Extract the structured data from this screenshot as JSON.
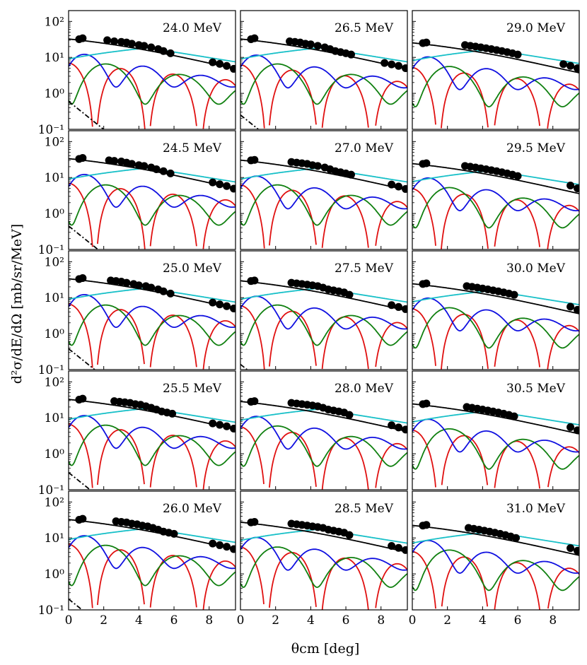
{
  "figure": {
    "ylabel": "d²σ/dE/dΩ [mb/sr/MeV]",
    "xlabel": "θcm [deg]"
  },
  "chart_data": {
    "type": "line",
    "layout": "5 rows x 3 columns grid of panels, read row-wise",
    "xlim": [
      0,
      9.5
    ],
    "ylim": [
      0.1,
      200
    ],
    "yscale": "log",
    "xticks": [
      "0",
      "2",
      "4",
      "6",
      "8"
    ],
    "yticks": [
      "10⁻¹",
      "10⁰",
      "10¹",
      "10²"
    ],
    "xlabel": "θcm [deg]",
    "ylabel": "d²σ/dE/dΩ [mb/sr/MeV]",
    "colors": {
      "data": "#000000",
      "total": "#000000",
      "red": "#e01010",
      "blue": "#1010e0",
      "green": "#108010",
      "cyan": "#18c0c8",
      "dashdot": "#000000"
    },
    "legend": "none",
    "panels": [
      {
        "label": "24.0 MeV",
        "data_x": [
          0.6,
          0.8,
          2.2,
          2.6,
          3.0,
          3.3,
          3.6,
          4.0,
          4.3,
          4.7,
          5.1,
          5.4,
          5.8,
          8.2,
          8.6,
          9.0,
          9.4
        ],
        "data_y": [
          32,
          34,
          30,
          28,
          27,
          26,
          24,
          22,
          21,
          19,
          17,
          15,
          13,
          7.3,
          6.6,
          5.8,
          4.8
        ],
        "red_scale": 1.0,
        "blue_scale": 1.0,
        "green_scale": 1.0,
        "cyan_scale": 1.0,
        "dashdot": 0.6
      },
      {
        "label": "26.5 MeV",
        "data_x": [
          0.6,
          0.8,
          2.8,
          3.1,
          3.4,
          3.7,
          4.0,
          4.4,
          4.8,
          5.1,
          5.4,
          5.7,
          6.0,
          6.3,
          8.2,
          8.6,
          9.0,
          9.4
        ],
        "data_y": [
          32,
          34,
          28,
          27,
          26,
          24,
          23,
          21,
          19,
          17,
          15,
          14,
          13,
          12,
          7.0,
          6.4,
          5.8,
          5.0
        ],
        "red_scale": 0.9,
        "blue_scale": 0.95,
        "green_scale": 1.0,
        "cyan_scale": 1.0,
        "dashdot": 0.25
      },
      {
        "label": "29.0 MeV",
        "data_x": [
          0.6,
          0.8,
          3.0,
          3.3,
          3.6,
          3.9,
          4.2,
          4.5,
          4.8,
          5.1,
          5.4,
          5.7,
          6.0,
          8.6,
          9.0,
          9.4
        ],
        "data_y": [
          25,
          26,
          22,
          21,
          20,
          19,
          18,
          17,
          16,
          15,
          14,
          13,
          12,
          6.5,
          5.8,
          5.0
        ],
        "red_scale": 0.75,
        "blue_scale": 0.85,
        "green_scale": 0.85,
        "cyan_scale": 0.9,
        "dashdot": 0
      },
      {
        "label": "24.5 MeV",
        "data_x": [
          0.6,
          0.8,
          2.3,
          2.6,
          3.0,
          3.3,
          3.6,
          4.0,
          4.3,
          4.7,
          5.0,
          5.4,
          5.8,
          8.2,
          8.6,
          9.0,
          9.4
        ],
        "data_y": [
          33,
          35,
          30,
          29,
          28,
          26,
          24,
          22,
          21,
          19,
          17,
          15,
          13,
          7.3,
          6.5,
          5.8,
          4.9
        ],
        "red_scale": 1.0,
        "blue_scale": 1.0,
        "green_scale": 0.95,
        "cyan_scale": 1.0,
        "dashdot": 0.45
      },
      {
        "label": "27.0 MeV",
        "data_x": [
          0.6,
          0.8,
          2.9,
          3.2,
          3.5,
          3.8,
          4.1,
          4.4,
          4.8,
          5.1,
          5.4,
          5.7,
          6.0,
          6.3,
          8.6,
          9.0,
          9.4
        ],
        "data_y": [
          30,
          31,
          27,
          26,
          25,
          24,
          22,
          21,
          19,
          17,
          15,
          14,
          13,
          12,
          6.4,
          5.6,
          4.8
        ],
        "red_scale": 0.9,
        "blue_scale": 0.9,
        "green_scale": 0.95,
        "cyan_scale": 1.0,
        "dashdot": 0
      },
      {
        "label": "29.5 MeV",
        "data_x": [
          0.6,
          0.8,
          3.0,
          3.3,
          3.6,
          3.9,
          4.2,
          4.5,
          4.8,
          5.1,
          5.4,
          5.7,
          6.0,
          9.0,
          9.4
        ],
        "data_y": [
          24,
          25,
          21,
          20,
          19,
          18,
          17,
          16,
          15,
          14,
          13,
          12,
          11,
          6.0,
          5.0
        ],
        "red_scale": 0.7,
        "blue_scale": 0.8,
        "green_scale": 0.8,
        "cyan_scale": 0.85,
        "dashdot": 0
      },
      {
        "label": "25.0 MeV",
        "data_x": [
          0.6,
          0.8,
          2.4,
          2.7,
          3.0,
          3.3,
          3.7,
          4.0,
          4.4,
          4.7,
          5.1,
          5.4,
          5.8,
          8.2,
          8.6,
          9.0,
          9.4
        ],
        "data_y": [
          33,
          35,
          30,
          29,
          28,
          26,
          24,
          22,
          21,
          19,
          17,
          15,
          13,
          7.3,
          6.5,
          5.8,
          5.0
        ],
        "red_scale": 0.95,
        "blue_scale": 1.0,
        "green_scale": 0.95,
        "cyan_scale": 1.0,
        "dashdot": 0.38
      },
      {
        "label": "27.5 MeV",
        "data_x": [
          0.6,
          0.8,
          2.9,
          3.2,
          3.5,
          3.8,
          4.1,
          4.4,
          4.7,
          5.0,
          5.3,
          5.6,
          5.9,
          6.2,
          8.6,
          9.0,
          9.4
        ],
        "data_y": [
          29,
          30,
          26,
          25,
          24,
          23,
          22,
          21,
          19,
          17,
          16,
          15,
          14,
          12,
          6.2,
          5.5,
          4.8
        ],
        "red_scale": 0.85,
        "blue_scale": 0.9,
        "green_scale": 0.95,
        "cyan_scale": 1.0,
        "dashdot": 0.14
      },
      {
        "label": "30.0 MeV",
        "data_x": [
          0.6,
          0.8,
          3.1,
          3.4,
          3.7,
          4.0,
          4.3,
          4.6,
          4.9,
          5.2,
          5.5,
          5.8,
          9.0,
          9.4
        ],
        "data_y": [
          24,
          25,
          21,
          20,
          19,
          18,
          17,
          16,
          15,
          14,
          13,
          12,
          5.6,
          4.6
        ],
        "red_scale": 0.7,
        "blue_scale": 0.8,
        "green_scale": 0.8,
        "cyan_scale": 0.85,
        "dashdot": 0
      },
      {
        "label": "25.5 MeV",
        "data_x": [
          0.6,
          0.8,
          2.6,
          2.9,
          3.2,
          3.5,
          3.8,
          4.1,
          4.4,
          4.7,
          5.0,
          5.3,
          5.6,
          5.9,
          8.2,
          8.6,
          9.0,
          9.4
        ],
        "data_y": [
          32,
          34,
          29,
          28,
          27,
          26,
          24,
          23,
          21,
          19,
          17,
          15,
          14,
          13,
          7.0,
          6.4,
          5.8,
          5.0
        ],
        "red_scale": 0.95,
        "blue_scale": 0.95,
        "green_scale": 0.95,
        "cyan_scale": 1.0,
        "dashdot": 0.3
      },
      {
        "label": "28.0 MeV",
        "data_x": [
          0.6,
          0.8,
          2.9,
          3.2,
          3.5,
          3.8,
          4.1,
          4.4,
          4.7,
          5.0,
          5.3,
          5.6,
          5.9,
          6.2,
          8.6,
          9.0,
          9.4
        ],
        "data_y": [
          28,
          29,
          26,
          25,
          24,
          23,
          22,
          21,
          19,
          17,
          16,
          15,
          14,
          12,
          6.2,
          5.4,
          4.7
        ],
        "red_scale": 0.8,
        "blue_scale": 0.9,
        "green_scale": 0.9,
        "cyan_scale": 0.95,
        "dashdot": 0
      },
      {
        "label": "30.5 MeV",
        "data_x": [
          0.6,
          0.8,
          3.1,
          3.4,
          3.7,
          4.0,
          4.3,
          4.6,
          4.9,
          5.2,
          5.5,
          5.8,
          9.0,
          9.4
        ],
        "data_y": [
          24,
          25,
          20,
          19,
          18,
          17,
          16,
          15,
          14,
          13,
          12,
          11,
          5.5,
          4.5
        ],
        "red_scale": 0.65,
        "blue_scale": 0.75,
        "green_scale": 0.75,
        "cyan_scale": 0.85,
        "dashdot": 0
      },
      {
        "label": "26.0 MeV",
        "data_x": [
          0.6,
          0.8,
          2.7,
          3.0,
          3.3,
          3.6,
          3.9,
          4.2,
          4.5,
          4.8,
          5.1,
          5.4,
          5.7,
          6.0,
          8.2,
          8.6,
          9.0,
          9.4
        ],
        "data_y": [
          32,
          34,
          29,
          28,
          27,
          25,
          24,
          22,
          21,
          19,
          17,
          15,
          14,
          13,
          7.0,
          6.3,
          5.7,
          4.9
        ],
        "red_scale": 0.95,
        "blue_scale": 0.95,
        "green_scale": 0.95,
        "cyan_scale": 1.0,
        "dashdot": 0.2
      },
      {
        "label": "28.5 MeV",
        "data_x": [
          0.6,
          0.8,
          2.9,
          3.2,
          3.5,
          3.8,
          4.1,
          4.4,
          4.7,
          5.0,
          5.3,
          5.6,
          5.9,
          6.2,
          8.6,
          9.0,
          9.4
        ],
        "data_y": [
          27,
          28,
          25,
          24,
          23,
          22,
          21,
          20,
          19,
          17,
          16,
          15,
          14,
          12,
          6.0,
          5.3,
          4.6
        ],
        "red_scale": 0.8,
        "blue_scale": 0.85,
        "green_scale": 0.85,
        "cyan_scale": 0.95,
        "dashdot": 0
      },
      {
        "label": "31.0 MeV",
        "data_x": [
          0.6,
          0.8,
          3.2,
          3.5,
          3.8,
          4.1,
          4.4,
          4.7,
          5.0,
          5.3,
          5.6,
          5.9,
          9.0,
          9.4
        ],
        "data_y": [
          22,
          23,
          19,
          18,
          17,
          16,
          15,
          14,
          13,
          12,
          11,
          10,
          5.2,
          4.4
        ],
        "red_scale": 0.6,
        "blue_scale": 0.7,
        "green_scale": 0.7,
        "cyan_scale": 0.8,
        "dashdot": 0
      }
    ]
  }
}
